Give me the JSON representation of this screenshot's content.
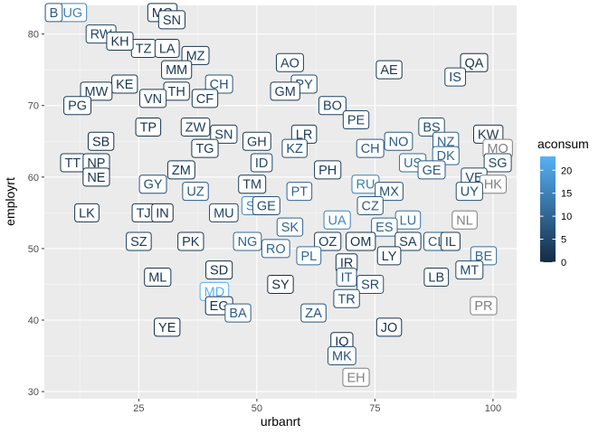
{
  "chart_data": {
    "type": "scatter",
    "xlabel": "urbanrt",
    "ylabel": "employrt",
    "xlim": [
      5,
      105
    ],
    "ylim": [
      29,
      84
    ],
    "x_ticks": [
      25,
      50,
      75,
      100
    ],
    "y_ticks": [
      30,
      40,
      50,
      60,
      70,
      80
    ],
    "grid": true,
    "legend": {
      "title": "aconsum",
      "placement": "right",
      "min": 0,
      "max": 23,
      "ticks": [
        0,
        5,
        10,
        15,
        20
      ],
      "color_low": "#132B43",
      "color_high": "#56B1F7",
      "na_color": "#7f7f7f"
    },
    "points": [
      {
        "label": "UG",
        "x": 11,
        "y": 83,
        "c": 15
      },
      {
        "label": "B",
        "x": 7,
        "y": 83,
        "c": 8
      },
      {
        "label": "RW",
        "x": 17,
        "y": 80,
        "c": 5
      },
      {
        "label": "MG",
        "x": 30,
        "y": 83,
        "c": 1
      },
      {
        "label": "SN",
        "x": 32,
        "y": 82,
        "c": 2
      },
      {
        "label": "TZ",
        "x": 26,
        "y": 78,
        "c": 3
      },
      {
        "label": "LA",
        "x": 31,
        "y": 78,
        "c": 2
      },
      {
        "label": "KH",
        "x": 21,
        "y": 79,
        "c": 2
      },
      {
        "label": "MZ",
        "x": 37,
        "y": 77,
        "c": 2
      },
      {
        "label": "MM",
        "x": 33,
        "y": 75,
        "c": 2
      },
      {
        "label": "AO",
        "x": 57,
        "y": 76,
        "c": 4
      },
      {
        "label": "QA",
        "x": 96,
        "y": 76,
        "c": 1
      },
      {
        "label": "AE",
        "x": 78,
        "y": 75,
        "c": 2
      },
      {
        "label": "IS",
        "x": 92,
        "y": 74,
        "c": 5
      },
      {
        "label": "KE",
        "x": 22,
        "y": 73,
        "c": 2
      },
      {
        "label": "MW",
        "x": 16,
        "y": 72,
        "c": 2
      },
      {
        "label": "PY",
        "x": 60,
        "y": 73,
        "c": 6
      },
      {
        "label": "CH",
        "x": 42,
        "y": 73,
        "c": 7
      },
      {
        "label": "TH",
        "x": 33,
        "y": 72,
        "c": 3
      },
      {
        "label": "GM",
        "x": 56,
        "y": 72,
        "c": 3
      },
      {
        "label": "CF",
        "x": 39,
        "y": 71,
        "c": 2
      },
      {
        "label": "VN",
        "x": 28,
        "y": 71,
        "c": 3
      },
      {
        "label": "PG",
        "x": 12,
        "y": 70,
        "c": 3
      },
      {
        "label": "BO",
        "x": 66,
        "y": 70,
        "c": 4
      },
      {
        "label": "PE",
        "x": 71,
        "y": 68,
        "c": 5
      },
      {
        "label": "TP",
        "x": 27,
        "y": 67,
        "c": 1
      },
      {
        "label": "ZW",
        "x": 37,
        "y": 67,
        "c": 3
      },
      {
        "label": "SN",
        "x": 43,
        "y": 66,
        "c": 3
      },
      {
        "label": "BS",
        "x": 87,
        "y": 67,
        "c": 6
      },
      {
        "label": "KW",
        "x": 99,
        "y": 66,
        "c": 2
      },
      {
        "label": "LR",
        "x": 60,
        "y": 66,
        "c": 2
      },
      {
        "label": "GH",
        "x": 50,
        "y": 65,
        "c": 3
      },
      {
        "label": "SB",
        "x": 17,
        "y": 65,
        "c": 1
      },
      {
        "label": "NO",
        "x": 80,
        "y": 65,
        "c": 8
      },
      {
        "label": "NZ",
        "x": 90,
        "y": 65,
        "c": 9
      },
      {
        "label": "TG",
        "x": 39,
        "y": 64,
        "c": 2
      },
      {
        "label": "KZ",
        "x": 58,
        "y": 64,
        "c": 6
      },
      {
        "label": "CH",
        "x": 74,
        "y": 64,
        "c": 8
      },
      {
        "label": "MO",
        "x": 101,
        "y": 64,
        "c": null
      },
      {
        "label": "DK",
        "x": 90,
        "y": 63,
        "c": 10
      },
      {
        "label": "SG",
        "x": 101,
        "y": 62,
        "c": 5
      },
      {
        "label": "US",
        "x": 83,
        "y": 62,
        "c": 11
      },
      {
        "label": "TT",
        "x": 11,
        "y": 62,
        "c": 3
      },
      {
        "label": "NP",
        "x": 16,
        "y": 62,
        "c": 2
      },
      {
        "label": "ID",
        "x": 51,
        "y": 62,
        "c": 5
      },
      {
        "label": "ZM",
        "x": 34,
        "y": 61,
        "c": 2
      },
      {
        "label": "PH",
        "x": 65,
        "y": 61,
        "c": 3
      },
      {
        "label": "GE",
        "x": 87,
        "y": 61,
        "c": 8
      },
      {
        "label": "NE",
        "x": 16,
        "y": 60,
        "c": 1
      },
      {
        "label": "VE",
        "x": 96,
        "y": 60,
        "c": 5
      },
      {
        "label": "GY",
        "x": 28,
        "y": 59,
        "c": 6
      },
      {
        "label": "TM",
        "x": 49,
        "y": 59,
        "c": 3
      },
      {
        "label": "RU",
        "x": 73,
        "y": 59,
        "c": 14
      },
      {
        "label": "HK",
        "x": 100,
        "y": 59,
        "c": null
      },
      {
        "label": "PT",
        "x": 59,
        "y": 58,
        "c": 10
      },
      {
        "label": "MX",
        "x": 78,
        "y": 58,
        "c": 7
      },
      {
        "label": "UY",
        "x": 95,
        "y": 58,
        "c": 6
      },
      {
        "label": "UZ",
        "x": 37,
        "y": 58,
        "c": 8
      },
      {
        "label": "SI",
        "x": 49,
        "y": 56,
        "c": 16
      },
      {
        "label": "GE",
        "x": 52,
        "y": 56,
        "c": 6
      },
      {
        "label": "CZ",
        "x": 74,
        "y": 56,
        "c": 8
      },
      {
        "label": "TJ",
        "x": 26,
        "y": 55,
        "c": 2
      },
      {
        "label": "IN",
        "x": 30,
        "y": 55,
        "c": 1
      },
      {
        "label": "LK",
        "x": 14,
        "y": 55,
        "c": 2
      },
      {
        "label": "MU",
        "x": 43,
        "y": 55,
        "c": 5
      },
      {
        "label": "UA",
        "x": 67,
        "y": 54,
        "c": 15
      },
      {
        "label": "LU",
        "x": 82,
        "y": 54,
        "c": 12
      },
      {
        "label": "NL",
        "x": 94,
        "y": 54,
        "c": null
      },
      {
        "label": "SK",
        "x": 57,
        "y": 53,
        "c": 10
      },
      {
        "label": "ES",
        "x": 77,
        "y": 53,
        "c": 10
      },
      {
        "label": "SZ",
        "x": 25,
        "y": 51,
        "c": 3
      },
      {
        "label": "PK",
        "x": 36,
        "y": 51,
        "c": 2
      },
      {
        "label": "NG",
        "x": 48,
        "y": 51,
        "c": 10
      },
      {
        "label": "OZ",
        "x": 65,
        "y": 51,
        "c": 3
      },
      {
        "label": "OM",
        "x": 72,
        "y": 51,
        "c": 1
      },
      {
        "label": "SA",
        "x": 82,
        "y": 51,
        "c": 3
      },
      {
        "label": "CL",
        "x": 88,
        "y": 51,
        "c": 8
      },
      {
        "label": "IL",
        "x": 91,
        "y": 51,
        "c": 3
      },
      {
        "label": "RO",
        "x": 54,
        "y": 50,
        "c": 10
      },
      {
        "label": "PL",
        "x": 61,
        "y": 49,
        "c": 11
      },
      {
        "label": "LY",
        "x": 78,
        "y": 49,
        "c": 2
      },
      {
        "label": "BE",
        "x": 98,
        "y": 49,
        "c": 11
      },
      {
        "label": "IR",
        "x": 69,
        "y": 48,
        "c": 2
      },
      {
        "label": "SD",
        "x": 42,
        "y": 47,
        "c": 1
      },
      {
        "label": "MT",
        "x": 95,
        "y": 47,
        "c": 5
      },
      {
        "label": "ML",
        "x": 29,
        "y": 46,
        "c": 2
      },
      {
        "label": "IT",
        "x": 69,
        "y": 46,
        "c": 8
      },
      {
        "label": "LB",
        "x": 88,
        "y": 46,
        "c": 3
      },
      {
        "label": "SY",
        "x": 55,
        "y": 45,
        "c": 1
      },
      {
        "label": "SR",
        "x": 74,
        "y": 45,
        "c": 6
      },
      {
        "label": "MD",
        "x": 41,
        "y": 44,
        "c": 23
      },
      {
        "label": "TR",
        "x": 69,
        "y": 43,
        "c": 6
      },
      {
        "label": "EG",
        "x": 42,
        "y": 42,
        "c": 1
      },
      {
        "label": "PR",
        "x": 98,
        "y": 42,
        "c": null
      },
      {
        "label": "BA",
        "x": 46,
        "y": 41,
        "c": 9
      },
      {
        "label": "ZA",
        "x": 62,
        "y": 41,
        "c": 7
      },
      {
        "label": "YE",
        "x": 31,
        "y": 39,
        "c": 1
      },
      {
        "label": "JO",
        "x": 78,
        "y": 39,
        "c": 1
      },
      {
        "label": "IQ",
        "x": 68,
        "y": 37,
        "c": 1
      },
      {
        "label": "MK",
        "x": 68,
        "y": 35,
        "c": 7
      },
      {
        "label": "EH",
        "x": 71,
        "y": 32,
        "c": null
      }
    ]
  }
}
